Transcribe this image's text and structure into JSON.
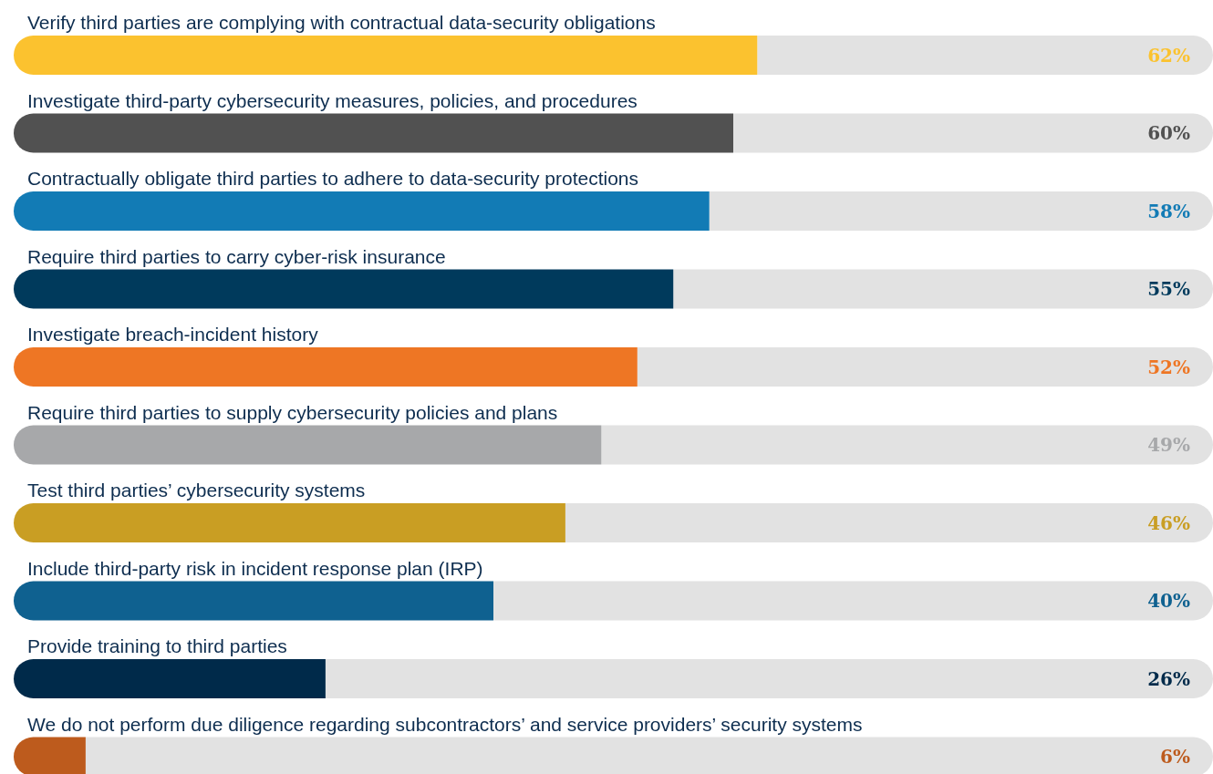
{
  "chart_data": {
    "type": "bar",
    "orientation": "horizontal",
    "xlim": [
      0,
      100
    ],
    "categories": [
      "Verify third parties are complying with contractual data-security obligations",
      "Investigate third-party cybersecurity measures, policies, and procedures",
      "Contractually obligate third parties to adhere to data-security protections",
      "Require third parties to carry cyber-risk insurance",
      "Investigate breach-incident history",
      "Require third parties to supply cybersecurity policies and plans",
      "Test third parties’ cybersecurity systems",
      "Include third-party risk in incident response plan (IRP)",
      "Provide training to third parties",
      "We do not perform due diligence regarding subcontractors’ and service providers’ security systems"
    ],
    "values": [
      62,
      60,
      58,
      55,
      52,
      49,
      46,
      40,
      26,
      6
    ],
    "value_labels": [
      "62%",
      "60%",
      "58%",
      "55%",
      "52%",
      "49%",
      "46%",
      "40%",
      "26%",
      "6%"
    ],
    "colors": [
      "#fbc22f",
      "#515151",
      "#127bb5",
      "#003a5c",
      "#ee7624",
      "#a7a8aa",
      "#c99e23",
      "#0f6190",
      "#002a4a",
      "#bd5b1d"
    ]
  }
}
